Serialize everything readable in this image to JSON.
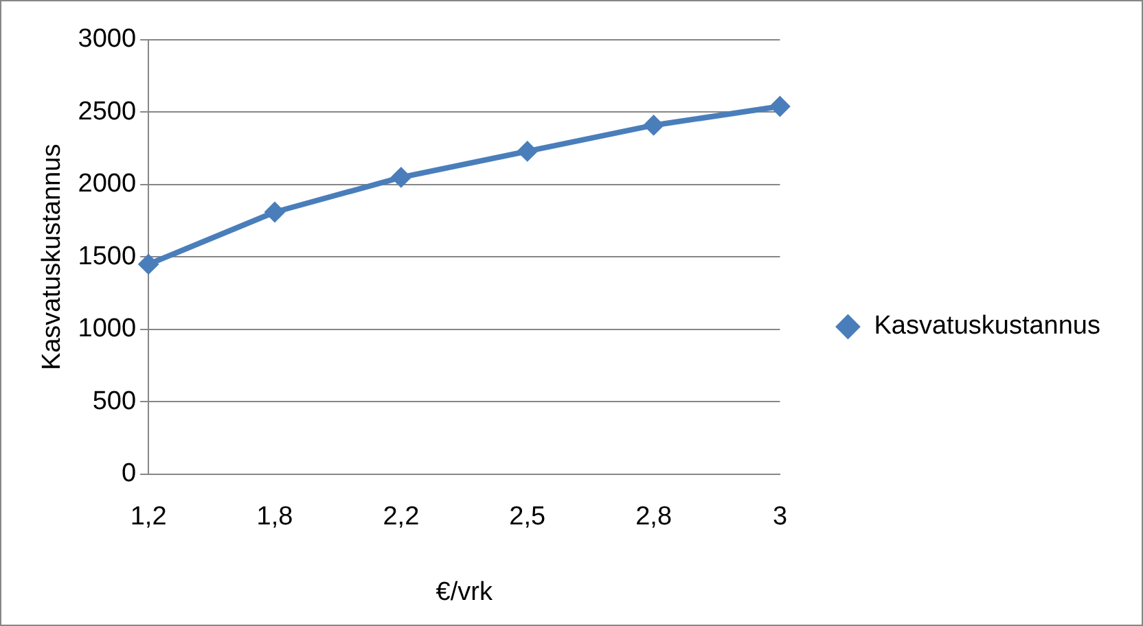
{
  "chart_data": {
    "type": "line",
    "xlabel": "€/vrk",
    "ylabel": "Kasvatuskustannus",
    "categories": [
      "1,2",
      "1,8",
      "2,2",
      "2,5",
      "2,8",
      "3"
    ],
    "series": [
      {
        "name": "Kasvatuskustannus",
        "color": "#4a7ebb",
        "values": [
          1450,
          1810,
          2050,
          2230,
          2410,
          2540
        ]
      }
    ],
    "ylim": [
      0,
      3000
    ],
    "yticks": [
      0,
      500,
      1000,
      1500,
      2000,
      2500,
      3000
    ],
    "grid": "y",
    "legend": "right",
    "marker": "diamond",
    "line_style": "solid"
  }
}
